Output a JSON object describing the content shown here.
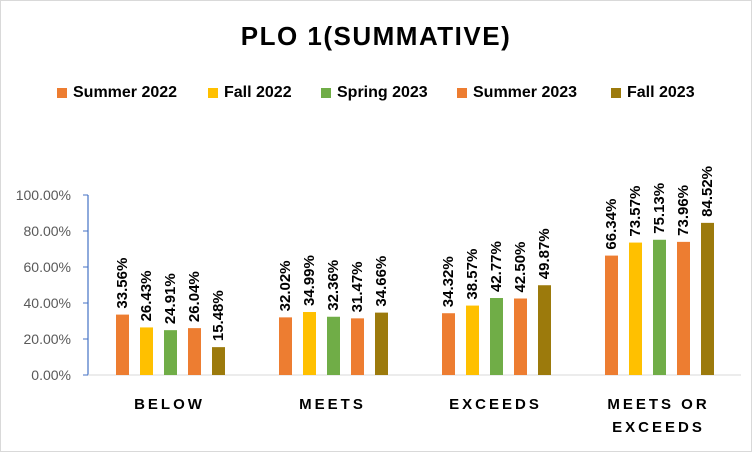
{
  "chart_data": {
    "type": "bar",
    "title": "PLO 1(SUMMATIVE)",
    "xlabel": "",
    "ylabel": "",
    "ylim": [
      0,
      100
    ],
    "yticks": [
      "0.00%",
      "20.00%",
      "40.00%",
      "60.00%",
      "80.00%",
      "100.00%"
    ],
    "grid": false,
    "legend_position": "top",
    "categories": [
      "BELOW",
      "MEETS",
      "EXCEEDS",
      "MEETS OR EXCEEDS"
    ],
    "series": [
      {
        "name": "Summer 2022",
        "color": "#ed7d31",
        "values": [
          33.56,
          32.02,
          34.32,
          66.34
        ],
        "labels": [
          "33.56%",
          "32.02%",
          "34.32%",
          "66.34%"
        ]
      },
      {
        "name": "Fall 2022",
        "color": "#ffc000",
        "values": [
          26.43,
          34.99,
          38.57,
          73.57
        ],
        "labels": [
          "26.43%",
          "34.99%",
          "38.57%",
          "73.57%"
        ]
      },
      {
        "name": "Spring 2023",
        "color": "#70ad47",
        "values": [
          24.91,
          32.36,
          42.77,
          75.13
        ],
        "labels": [
          "24.91%",
          "32.36%",
          "42.77%",
          "75.13%"
        ]
      },
      {
        "name": "Summer 2023",
        "color": "#ed7d31",
        "values": [
          26.04,
          31.47,
          42.5,
          73.96
        ],
        "labels": [
          "26.04%",
          "31.47%",
          "42.50%",
          "73.96%"
        ]
      },
      {
        "name": "Fall 2023",
        "color": "#9c7a0c",
        "values": [
          15.48,
          34.66,
          49.87,
          84.52
        ],
        "labels": [
          "15.48%",
          "34.66%",
          "49.87%",
          "84.52%"
        ]
      }
    ]
  }
}
